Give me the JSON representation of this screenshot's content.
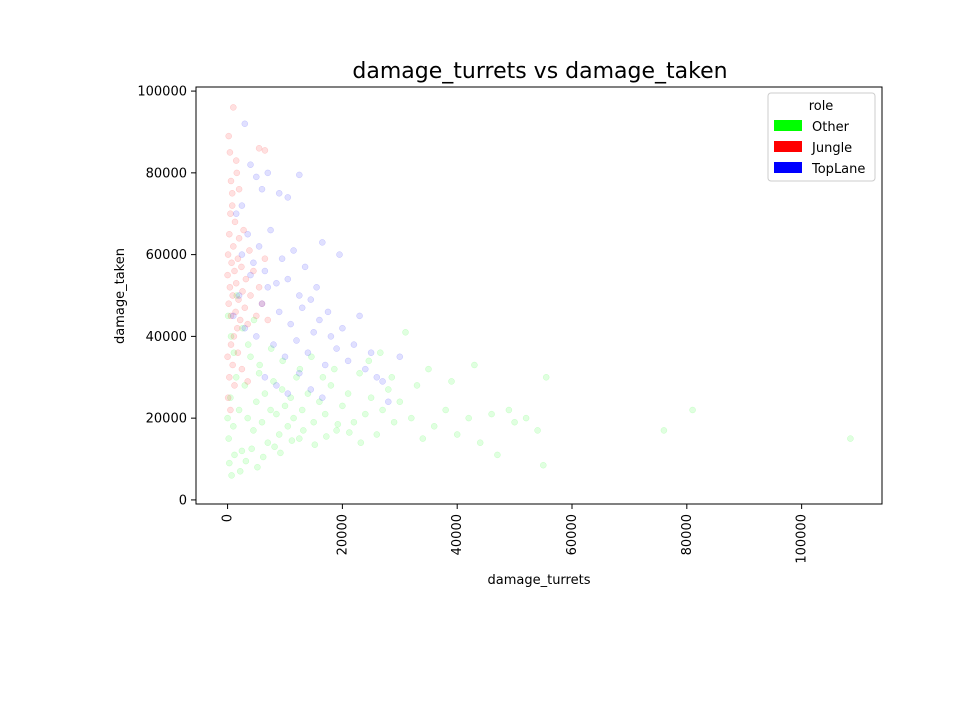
{
  "chart_data": {
    "type": "scatter",
    "title": "damage_turrets vs damage_taken",
    "xlabel": "damage_turrets",
    "ylabel": "damage_taken",
    "xlim": [
      -5500,
      114000
    ],
    "ylim": [
      -1000,
      101000
    ],
    "x_ticks": [
      0,
      20000,
      40000,
      60000,
      80000,
      100000
    ],
    "x_tick_labels": [
      "0",
      "20000",
      "40000",
      "60000",
      "80000",
      "100000"
    ],
    "y_ticks": [
      0,
      20000,
      40000,
      60000,
      80000,
      100000
    ],
    "y_tick_labels": [
      "0",
      "20000",
      "40000",
      "60000",
      "80000",
      "100000"
    ],
    "grid": false,
    "legend": {
      "title": "role",
      "position": "top-right",
      "entries": [
        {
          "label": "Other",
          "color": "#00ff00"
        },
        {
          "label": "Jungle",
          "color": "#ff0000"
        },
        {
          "label": "TopLane",
          "color": "#0000ff"
        }
      ]
    },
    "series": [
      {
        "name": "Other",
        "color": "#00ff00",
        "points": [
          [
            0,
            20000
          ],
          [
            200,
            15000
          ],
          [
            500,
            25000
          ],
          [
            1000,
            18000
          ],
          [
            1500,
            30000
          ],
          [
            2000,
            22000
          ],
          [
            2500,
            12000
          ],
          [
            3000,
            28000
          ],
          [
            3500,
            20000
          ],
          [
            4000,
            35000
          ],
          [
            4500,
            17000
          ],
          [
            5000,
            24000
          ],
          [
            5500,
            31000
          ],
          [
            6000,
            19000
          ],
          [
            6500,
            26000
          ],
          [
            7000,
            14000
          ],
          [
            7500,
            22000
          ],
          [
            8000,
            29000
          ],
          [
            8500,
            21000
          ],
          [
            9000,
            16000
          ],
          [
            9500,
            27000
          ],
          [
            10000,
            23000
          ],
          [
            10500,
            18000
          ],
          [
            11000,
            25000
          ],
          [
            11500,
            20000
          ],
          [
            12000,
            30000
          ],
          [
            12500,
            15000
          ],
          [
            13000,
            22000
          ],
          [
            14000,
            26000
          ],
          [
            15000,
            19000
          ],
          [
            16000,
            24000
          ],
          [
            17000,
            21000
          ],
          [
            18000,
            28000
          ],
          [
            19000,
            17000
          ],
          [
            20000,
            23000
          ],
          [
            21000,
            26000
          ],
          [
            22000,
            19000
          ],
          [
            23000,
            31000
          ],
          [
            24000,
            21000
          ],
          [
            25000,
            25000
          ],
          [
            26000,
            16000
          ],
          [
            27000,
            22000
          ],
          [
            28000,
            27000
          ],
          [
            29000,
            19000
          ],
          [
            30000,
            24000
          ],
          [
            32000,
            20000
          ],
          [
            33000,
            28000
          ],
          [
            34000,
            15000
          ],
          [
            36000,
            18000
          ],
          [
            38000,
            22000
          ],
          [
            39000,
            29000
          ],
          [
            40000,
            16000
          ],
          [
            42000,
            20000
          ],
          [
            43000,
            33000
          ],
          [
            44000,
            14000
          ],
          [
            46000,
            21000
          ],
          [
            47000,
            11000
          ],
          [
            49000,
            22000
          ],
          [
            50000,
            19000
          ],
          [
            52000,
            20000
          ],
          [
            54000,
            17000
          ],
          [
            55000,
            8500
          ],
          [
            55500,
            30000
          ],
          [
            76000,
            17000
          ],
          [
            81000,
            22000
          ],
          [
            108500,
            15000
          ],
          [
            300,
            9000
          ],
          [
            700,
            6000
          ],
          [
            1200,
            11000
          ],
          [
            2200,
            7000
          ],
          [
            3200,
            9500
          ],
          [
            4200,
            12500
          ],
          [
            5200,
            8000
          ],
          [
            6200,
            10500
          ],
          [
            8200,
            13000
          ],
          [
            9200,
            11500
          ],
          [
            11200,
            14500
          ],
          [
            13200,
            17000
          ],
          [
            15200,
            13500
          ],
          [
            17200,
            15500
          ],
          [
            19200,
            18500
          ],
          [
            21200,
            16500
          ],
          [
            23200,
            14000
          ],
          [
            100,
            45000
          ],
          [
            600,
            40000
          ],
          [
            1100,
            36000
          ],
          [
            1600,
            50000
          ],
          [
            2600,
            42000
          ],
          [
            3600,
            38000
          ],
          [
            4600,
            44000
          ],
          [
            5600,
            33000
          ],
          [
            7600,
            37000
          ],
          [
            9600,
            34000
          ],
          [
            12600,
            32000
          ],
          [
            14600,
            35000
          ],
          [
            16600,
            30000
          ],
          [
            18600,
            32000
          ],
          [
            24600,
            34000
          ],
          [
            26600,
            36000
          ],
          [
            28600,
            30000
          ],
          [
            31000,
            41000
          ],
          [
            35000,
            32000
          ]
        ]
      },
      {
        "name": "Jungle",
        "color": "#ff0000",
        "points": [
          [
            0,
            55000
          ],
          [
            100,
            60000
          ],
          [
            200,
            48000
          ],
          [
            300,
            65000
          ],
          [
            400,
            52000
          ],
          [
            500,
            70000
          ],
          [
            600,
            45000
          ],
          [
            700,
            58000
          ],
          [
            800,
            75000
          ],
          [
            900,
            50000
          ],
          [
            1000,
            62000
          ],
          [
            1100,
            40000
          ],
          [
            1200,
            56000
          ],
          [
            1300,
            68000
          ],
          [
            1400,
            46000
          ],
          [
            1500,
            53000
          ],
          [
            1600,
            80000
          ],
          [
            1700,
            42000
          ],
          [
            1800,
            59000
          ],
          [
            1900,
            49000
          ],
          [
            2000,
            64000
          ],
          [
            2200,
            44000
          ],
          [
            2400,
            57000
          ],
          [
            2600,
            51000
          ],
          [
            2800,
            66000
          ],
          [
            3000,
            47000
          ],
          [
            3200,
            54000
          ],
          [
            3500,
            43000
          ],
          [
            3800,
            61000
          ],
          [
            4000,
            50000
          ],
          [
            4500,
            56000
          ],
          [
            5000,
            45000
          ],
          [
            5500,
            52000
          ],
          [
            6000,
            48000
          ],
          [
            6500,
            59000
          ],
          [
            7000,
            44000
          ],
          [
            200,
            89000
          ],
          [
            400,
            85000
          ],
          [
            600,
            78000
          ],
          [
            800,
            72000
          ],
          [
            1000,
            96000
          ],
          [
            1500,
            83000
          ],
          [
            2000,
            76000
          ],
          [
            5500,
            86000
          ],
          [
            6500,
            85500
          ],
          [
            0,
            35000
          ],
          [
            300,
            30000
          ],
          [
            600,
            38000
          ],
          [
            900,
            33000
          ],
          [
            1200,
            28000
          ],
          [
            1800,
            36000
          ],
          [
            2500,
            32000
          ],
          [
            3500,
            29000
          ],
          [
            100,
            25000
          ],
          [
            500,
            22000
          ]
        ]
      },
      {
        "name": "TopLane",
        "color": "#0000ff",
        "points": [
          [
            1000,
            45000
          ],
          [
            2000,
            50000
          ],
          [
            3000,
            42000
          ],
          [
            4000,
            55000
          ],
          [
            5000,
            40000
          ],
          [
            6000,
            48000
          ],
          [
            7000,
            52000
          ],
          [
            8000,
            38000
          ],
          [
            9000,
            46000
          ],
          [
            10000,
            35000
          ],
          [
            11000,
            43000
          ],
          [
            12000,
            39000
          ],
          [
            13000,
            47000
          ],
          [
            14000,
            36000
          ],
          [
            15000,
            41000
          ],
          [
            16000,
            44000
          ],
          [
            17000,
            33000
          ],
          [
            18000,
            40000
          ],
          [
            19000,
            37000
          ],
          [
            20000,
            42000
          ],
          [
            21000,
            34000
          ],
          [
            22000,
            38000
          ],
          [
            23000,
            45000
          ],
          [
            24000,
            32000
          ],
          [
            25000,
            36000
          ],
          [
            26000,
            30000
          ],
          [
            27000,
            29000
          ],
          [
            28000,
            24000
          ],
          [
            30000,
            35000
          ],
          [
            2500,
            60000
          ],
          [
            3500,
            65000
          ],
          [
            4500,
            58000
          ],
          [
            5500,
            62000
          ],
          [
            6500,
            56000
          ],
          [
            7500,
            66000
          ],
          [
            8500,
            53000
          ],
          [
            9500,
            59000
          ],
          [
            10500,
            54000
          ],
          [
            11500,
            61000
          ],
          [
            12500,
            50000
          ],
          [
            13500,
            57000
          ],
          [
            14500,
            49000
          ],
          [
            15500,
            52000
          ],
          [
            16500,
            63000
          ],
          [
            17500,
            46000
          ],
          [
            19500,
            60000
          ],
          [
            3000,
            92000
          ],
          [
            4000,
            82000
          ],
          [
            5000,
            79000
          ],
          [
            6000,
            76000
          ],
          [
            7000,
            80000
          ],
          [
            9000,
            75000
          ],
          [
            10500,
            74000
          ],
          [
            12500,
            79500
          ],
          [
            1500,
            70000
          ],
          [
            2500,
            72000
          ],
          [
            6500,
            30000
          ],
          [
            8500,
            28000
          ],
          [
            10500,
            26000
          ],
          [
            12500,
            31000
          ],
          [
            14500,
            27000
          ],
          [
            16500,
            25000
          ]
        ]
      }
    ]
  }
}
